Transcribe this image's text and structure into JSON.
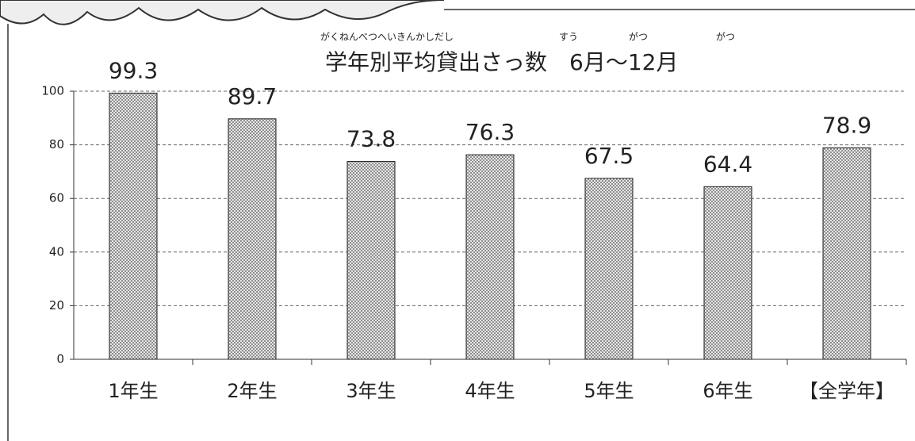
{
  "chart_data": {
    "type": "bar",
    "title": "学年別平均貸出さっ数　6月〜12月",
    "title_ruby": [
      "がくねんべつへいきんかしだし",
      "すう",
      "がつ",
      "がつ"
    ],
    "categories": [
      "1年生",
      "2年生",
      "3年生",
      "4年生",
      "5年生",
      "6年生",
      "【全学年】"
    ],
    "values": [
      99.3,
      89.7,
      73.8,
      76.3,
      67.5,
      64.4,
      78.9
    ],
    "color": "#b0b0b0",
    "ylim": [
      0,
      100
    ],
    "yticks": [
      0,
      20,
      40,
      60,
      80,
      100
    ],
    "grid": true
  }
}
